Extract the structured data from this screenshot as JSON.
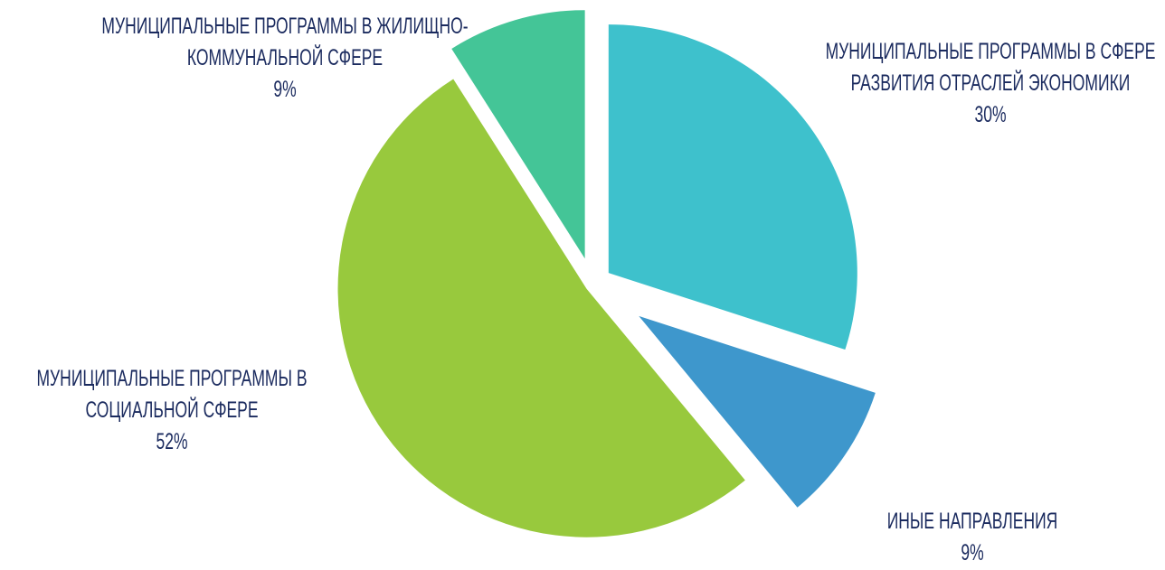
{
  "chart_data": {
    "type": "pie",
    "categories": [
      "МУНИЦИПАЛЬНЫЕ ПРОГРАММЫ В СФЕРЕ РАЗВИТИЯ ОТРАСЛЕЙ ЭКОНОМИКИ",
      "ИНЫЕ НАПРАВЛЕНИЯ",
      "МУНИЦИПАЛЬНЫЕ ПРОГРАММЫ В СОЦИАЛЬНОЙ СФЕРЕ",
      "МУНИЦИПАЛЬНЫЕ ПРОГРАММЫ В ЖИЛИЩНО-КОММУНАЛЬНОЙ СФЕРЕ"
    ],
    "values": [
      30,
      9,
      52,
      9
    ],
    "value_labels": [
      "30%",
      "9%",
      "52%",
      "9%"
    ],
    "colors": [
      "#3ec1cc",
      "#3e97cc",
      "#98c93d",
      "#44c597"
    ]
  }
}
